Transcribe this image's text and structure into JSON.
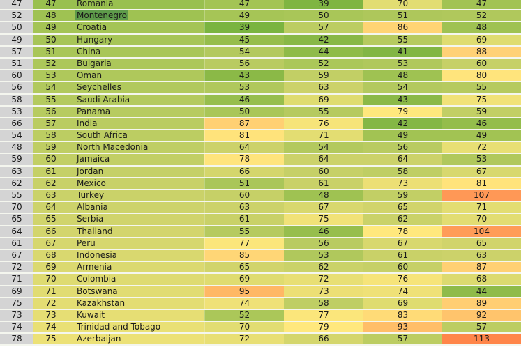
{
  "sheet": {
    "columns": [
      "prev_rank",
      "rank",
      "country",
      "score_a",
      "score_b",
      "score_c",
      "score_d"
    ],
    "selected_cell": {
      "row": 1,
      "column": "country",
      "value": "Montenegro"
    },
    "rows": [
      {
        "prev": "47",
        "rank": "47",
        "country": "Romania",
        "a": "47",
        "b": "39",
        "c": "70",
        "d": "47",
        "row_color": "#99c04f",
        "colors": [
          "#a3c454",
          "#7fb542",
          "#e2dd72",
          "#a2c353"
        ]
      },
      {
        "prev": "52",
        "rank": "48",
        "country": "Montenegro",
        "a": "49",
        "b": "50",
        "c": "51",
        "d": "52",
        "row_color": "#9fc252",
        "colors": [
          "#a6c556",
          "#a9c658",
          "#aec75b",
          "#b0c85c"
        ]
      },
      {
        "prev": "50",
        "rank": "49",
        "country": "Croatia",
        "a": "39",
        "b": "57",
        "c": "86",
        "d": "48",
        "row_color": "#a4c455",
        "colors": [
          "#7ab440",
          "#bccd62",
          "#ffd474",
          "#9fc252"
        ]
      },
      {
        "prev": "49",
        "rank": "50",
        "country": "Hungary",
        "a": "45",
        "b": "42",
        "c": "55",
        "d": "69",
        "row_color": "#a7c557",
        "colors": [
          "#96bd4c",
          "#88b846",
          "#b6ca5f",
          "#dfdc70"
        ]
      },
      {
        "prev": "57",
        "rank": "51",
        "country": "China",
        "a": "54",
        "b": "44",
        "c": "41",
        "d": "88",
        "row_color": "#a9c658",
        "colors": [
          "#b3c95e",
          "#8fbb49",
          "#82b644",
          "#ffd176"
        ]
      },
      {
        "prev": "51",
        "rank": "52",
        "country": "Bulgaria",
        "a": "56",
        "b": "52",
        "c": "53",
        "d": "60",
        "row_color": "#acc75a",
        "colors": [
          "#b9cb61",
          "#abc759",
          "#b0c85c",
          "#c6d067"
        ]
      },
      {
        "prev": "60",
        "rank": "53",
        "country": "Oman",
        "a": "43",
        "b": "59",
        "c": "48",
        "d": "80",
        "row_color": "#afc85b",
        "colors": [
          "#8bb947",
          "#c2cf65",
          "#9fc252",
          "#ffe47c"
        ]
      },
      {
        "prev": "56",
        "rank": "54",
        "country": "Seychelles",
        "a": "53",
        "b": "63",
        "c": "54",
        "d": "55",
        "row_color": "#b1c95d",
        "colors": [
          "#b0c85c",
          "#ccd26a",
          "#b3c95e",
          "#b6ca5f"
        ]
      },
      {
        "prev": "58",
        "rank": "55",
        "country": "Saudi Arabia",
        "a": "46",
        "b": "69",
        "c": "43",
        "d": "75",
        "row_color": "#b4ca5e",
        "colors": [
          "#97be4d",
          "#dfdc70",
          "#8bb947",
          "#f1e278"
        ]
      },
      {
        "prev": "53",
        "rank": "56",
        "country": "Panama",
        "a": "50",
        "b": "55",
        "c": "79",
        "d": "59",
        "row_color": "#b7cb60",
        "colors": [
          "#a9c658",
          "#b6ca5f",
          "#ffe87d",
          "#c2cf65"
        ]
      },
      {
        "prev": "66",
        "rank": "57",
        "country": "India",
        "a": "87",
        "b": "76",
        "c": "42",
        "d": "46",
        "row_color": "#bacc61",
        "colors": [
          "#ffd073",
          "#f6e479",
          "#84b745",
          "#94bd4b"
        ]
      },
      {
        "prev": "54",
        "rank": "58",
        "country": "South Africa",
        "a": "81",
        "b": "71",
        "c": "49",
        "d": "49",
        "row_color": "#bccd62",
        "colors": [
          "#ffe37b",
          "#e3dd72",
          "#a2c353",
          "#a2c353"
        ]
      },
      {
        "prev": "48",
        "rank": "59",
        "country": "North Macedonia",
        "a": "64",
        "b": "54",
        "c": "56",
        "d": "72",
        "row_color": "#bfce64",
        "colors": [
          "#ccd26a",
          "#b3c95e",
          "#b9cb61",
          "#e8df74"
        ]
      },
      {
        "prev": "59",
        "rank": "60",
        "country": "Jamaica",
        "a": "78",
        "b": "64",
        "c": "64",
        "d": "53",
        "row_color": "#c2cf65",
        "colors": [
          "#ffe47c",
          "#ccd26a",
          "#ccd26a",
          "#b0c85c"
        ]
      },
      {
        "prev": "63",
        "rank": "61",
        "country": "Jordan",
        "a": "66",
        "b": "60",
        "c": "58",
        "d": "67",
        "row_color": "#c5d067",
        "colors": [
          "#d4d66c",
          "#c6d067",
          "#bfce64",
          "#d8d86e"
        ]
      },
      {
        "prev": "62",
        "rank": "62",
        "country": "Mexico",
        "a": "51",
        "b": "61",
        "c": "73",
        "d": "81",
        "row_color": "#c8d168",
        "colors": [
          "#aac659",
          "#c9d168",
          "#ecdf75",
          "#ffe37b"
        ]
      },
      {
        "prev": "55",
        "rank": "63",
        "country": "Turkey",
        "a": "60",
        "b": "48",
        "c": "59",
        "d": "107",
        "row_color": "#cad269",
        "colors": [
          "#c6d067",
          "#9fc252",
          "#c2cf65",
          "#ff9856"
        ]
      },
      {
        "prev": "70",
        "rank": "64",
        "country": "Albania",
        "a": "63",
        "b": "67",
        "c": "65",
        "d": "71",
        "row_color": "#cdd36b",
        "colors": [
          "#ccd26a",
          "#d8d86e",
          "#d1d46b",
          "#e3dd72"
        ]
      },
      {
        "prev": "65",
        "rank": "65",
        "country": "Serbia",
        "a": "61",
        "b": "75",
        "c": "62",
        "d": "70",
        "row_color": "#d0d46c",
        "colors": [
          "#c9d168",
          "#f1e278",
          "#cad269",
          "#e2dd72"
        ]
      },
      {
        "prev": "64",
        "rank": "66",
        "country": "Thailand",
        "a": "55",
        "b": "46",
        "c": "78",
        "d": "104",
        "row_color": "#d3d56d",
        "colors": [
          "#b6ca5f",
          "#97be4d",
          "#ffe87d",
          "#ff9c58"
        ]
      },
      {
        "prev": "61",
        "rank": "67",
        "country": "Peru",
        "a": "77",
        "b": "56",
        "c": "67",
        "d": "65",
        "row_color": "#d6d76e",
        "colors": [
          "#fbe67b",
          "#b9cb61",
          "#d8d86e",
          "#d1d46b"
        ]
      },
      {
        "prev": "67",
        "rank": "68",
        "country": "Indonesia",
        "a": "85",
        "b": "53",
        "c": "61",
        "d": "63",
        "row_color": "#d9d86f",
        "colors": [
          "#ffd676",
          "#b0c85c",
          "#c9d168",
          "#ccd26a"
        ]
      },
      {
        "prev": "72",
        "rank": "69",
        "country": "Armenia",
        "a": "65",
        "b": "62",
        "c": "60",
        "d": "87",
        "row_color": "#dbd970",
        "colors": [
          "#d1d46b",
          "#cad269",
          "#c6d067",
          "#ffd073"
        ]
      },
      {
        "prev": "71",
        "rank": "70",
        "country": "Colombia",
        "a": "69",
        "b": "72",
        "c": "76",
        "d": "68",
        "row_color": "#dedb71",
        "colors": [
          "#dfdc70",
          "#e8df74",
          "#f6e479",
          "#dcda6f"
        ]
      },
      {
        "prev": "69",
        "rank": "71",
        "country": "Botswana",
        "a": "95",
        "b": "73",
        "c": "74",
        "d": "44",
        "row_color": "#e1dc72",
        "colors": [
          "#ffb865",
          "#ecdf75",
          "#efe177",
          "#8fbb49"
        ]
      },
      {
        "prev": "75",
        "rank": "72",
        "country": "Kazakhstan",
        "a": "74",
        "b": "58",
        "c": "69",
        "d": "89",
        "row_color": "#e3dd73",
        "colors": [
          "#efe177",
          "#bfce64",
          "#dfdc70",
          "#ffce72"
        ]
      },
      {
        "prev": "73",
        "rank": "73",
        "country": "Kuwait",
        "a": "52",
        "b": "77",
        "c": "83",
        "d": "92",
        "row_color": "#e6de74",
        "colors": [
          "#abc759",
          "#fbe67b",
          "#ffdb77",
          "#ffc46c"
        ]
      },
      {
        "prev": "74",
        "rank": "74",
        "country": "Trinidad and Tobago",
        "a": "70",
        "b": "79",
        "c": "93",
        "d": "57",
        "row_color": "#e9e075",
        "colors": [
          "#e2dd72",
          "#ffe87d",
          "#ffbe68",
          "#bccd62"
        ]
      },
      {
        "prev": "78",
        "rank": "75",
        "country": "Azerbaijan",
        "a": "72",
        "b": "66",
        "c": "57",
        "d": "113",
        "row_color": "#ece176",
        "colors": [
          "#e8df74",
          "#d4d66c",
          "#bccd62",
          "#ff8549"
        ]
      }
    ]
  }
}
